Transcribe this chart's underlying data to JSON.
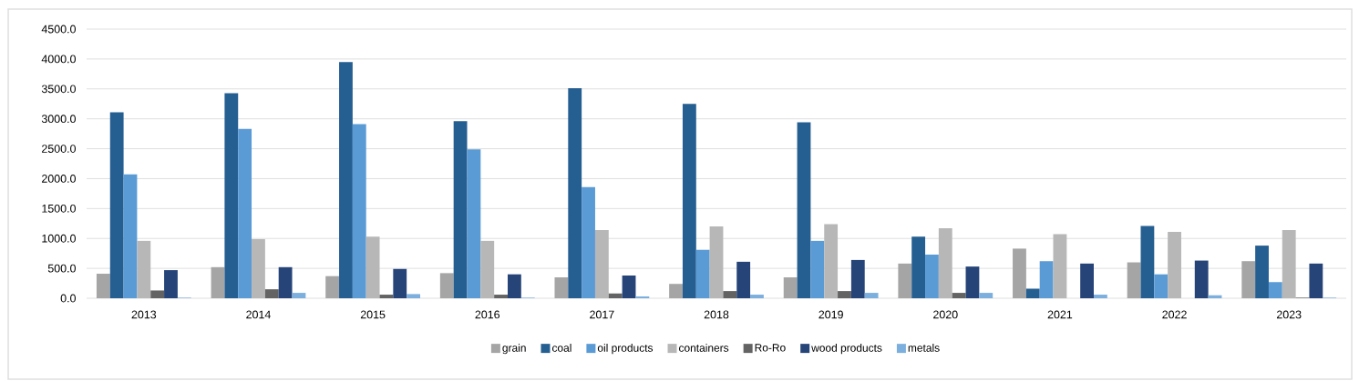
{
  "chart_data": {
    "type": "bar",
    "categories": [
      "2013",
      "2014",
      "2015",
      "2016",
      "2017",
      "2018",
      "2019",
      "2020",
      "2021",
      "2022",
      "2023"
    ],
    "series": [
      {
        "name": "grain",
        "color": "#a5a5a5",
        "values": [
          410,
          520,
          370,
          420,
          350,
          240,
          350,
          580,
          830,
          600,
          620
        ]
      },
      {
        "name": "coal",
        "color": "#255e91",
        "values": [
          3110,
          3430,
          3950,
          2960,
          3510,
          3250,
          2940,
          1030,
          160,
          1210,
          880
        ]
      },
      {
        "name": "oil products",
        "color": "#5b9bd5",
        "values": [
          2070,
          2830,
          2910,
          2490,
          1860,
          810,
          960,
          730,
          620,
          400,
          270
        ]
      },
      {
        "name": "containers",
        "color": "#b7b7b7",
        "values": [
          960,
          990,
          1030,
          960,
          1140,
          1200,
          1240,
          1170,
          1070,
          1110,
          1140
        ]
      },
      {
        "name": "Ro-Ro",
        "color": "#636363",
        "values": [
          130,
          150,
          60,
          60,
          80,
          120,
          120,
          90,
          0,
          0,
          10
        ]
      },
      {
        "name": "wood products",
        "color": "#264478",
        "values": [
          470,
          520,
          490,
          400,
          380,
          610,
          640,
          530,
          580,
          630,
          580
        ]
      },
      {
        "name": "metals",
        "color": "#7cafdd",
        "values": [
          10,
          90,
          70,
          10,
          30,
          60,
          90,
          90,
          60,
          50,
          10
        ]
      }
    ],
    "ylim": [
      0,
      4500
    ],
    "yticks": [
      {
        "value": 0,
        "label": "0.0"
      },
      {
        "value": 500,
        "label": "500.0"
      },
      {
        "value": 1000,
        "label": "1000.0"
      },
      {
        "value": 1500,
        "label": "1500.0"
      },
      {
        "value": 2000,
        "label": "2000.0"
      },
      {
        "value": 2500,
        "label": "2500.0"
      },
      {
        "value": 3000,
        "label": "3000.0"
      },
      {
        "value": 3500,
        "label": "3500.0"
      },
      {
        "value": 4000,
        "label": "4000.0"
      },
      {
        "value": 4500,
        "label": "4500.0"
      }
    ],
    "grid": "y",
    "legend": "bottom"
  }
}
